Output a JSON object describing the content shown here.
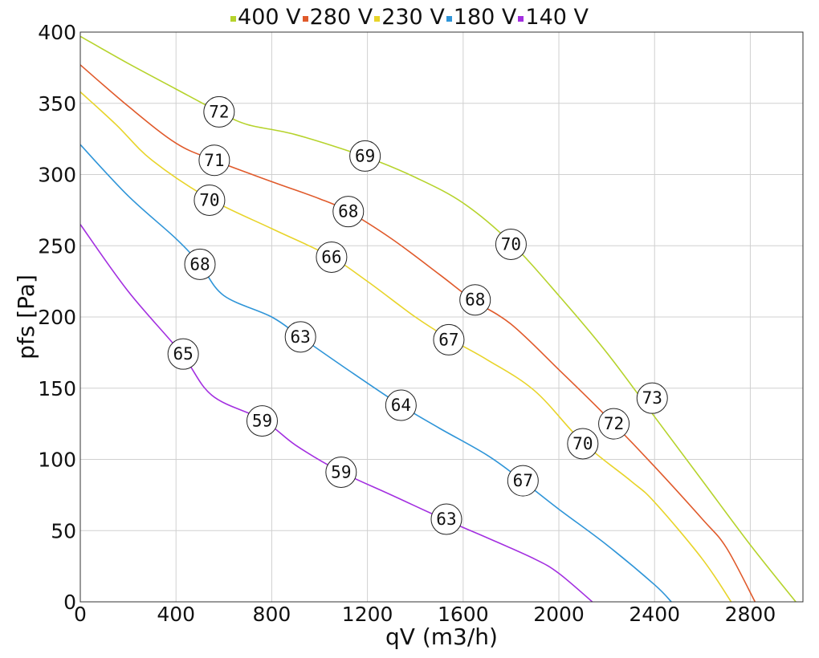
{
  "chart_data": {
    "type": "line",
    "title": "",
    "xlabel": "qV (m3/h)",
    "ylabel": "pfs [Pa]",
    "xlim": [
      0,
      3020
    ],
    "ylim": [
      0,
      400
    ],
    "xticks": [
      0,
      400,
      800,
      1200,
      1600,
      2000,
      2400,
      2800
    ],
    "yticks": [
      0,
      50,
      100,
      150,
      200,
      250,
      300,
      350,
      400
    ],
    "grid": true,
    "legend_position": "top-center",
    "series": [
      {
        "name": "400 V",
        "color": "#b6d32c",
        "points": [
          [
            0,
            397
          ],
          [
            200,
            378
          ],
          [
            400,
            360
          ],
          [
            580,
            344
          ],
          [
            700,
            335
          ],
          [
            900,
            328
          ],
          [
            1200,
            312
          ],
          [
            1400,
            298
          ],
          [
            1600,
            280
          ],
          [
            1800,
            252
          ],
          [
            2000,
            215
          ],
          [
            2200,
            175
          ],
          [
            2400,
            130
          ],
          [
            2600,
            85
          ],
          [
            2800,
            40
          ],
          [
            2990,
            0
          ]
        ],
        "markers": [
          {
            "x": 580,
            "y": 344,
            "label": "72"
          },
          {
            "x": 1190,
            "y": 313,
            "label": "69"
          },
          {
            "x": 1800,
            "y": 251,
            "label": "70"
          },
          {
            "x": 2390,
            "y": 143,
            "label": "73"
          }
        ]
      },
      {
        "name": "280 V",
        "color": "#e05a2b",
        "points": [
          [
            0,
            377
          ],
          [
            200,
            348
          ],
          [
            400,
            322
          ],
          [
            560,
            310
          ],
          [
            800,
            295
          ],
          [
            1000,
            283
          ],
          [
            1120,
            274
          ],
          [
            1300,
            255
          ],
          [
            1500,
            230
          ],
          [
            1640,
            212
          ],
          [
            1800,
            195
          ],
          [
            2000,
            163
          ],
          [
            2200,
            130
          ],
          [
            2400,
            95
          ],
          [
            2600,
            58
          ],
          [
            2700,
            38
          ],
          [
            2820,
            0
          ]
        ],
        "markers": [
          {
            "x": 560,
            "y": 310,
            "label": "71"
          },
          {
            "x": 1120,
            "y": 274,
            "label": "68"
          },
          {
            "x": 1650,
            "y": 212,
            "label": "68"
          },
          {
            "x": 2230,
            "y": 125,
            "label": "72"
          }
        ]
      },
      {
        "name": "230 V",
        "color": "#e8d42a",
        "points": [
          [
            0,
            358
          ],
          [
            150,
            335
          ],
          [
            300,
            310
          ],
          [
            540,
            283
          ],
          [
            800,
            262
          ],
          [
            1040,
            243
          ],
          [
            1200,
            225
          ],
          [
            1400,
            200
          ],
          [
            1540,
            185
          ],
          [
            1700,
            170
          ],
          [
            1900,
            148
          ],
          [
            2100,
            112
          ],
          [
            2300,
            85
          ],
          [
            2400,
            70
          ],
          [
            2600,
            30
          ],
          [
            2720,
            0
          ]
        ],
        "markers": [
          {
            "x": 540,
            "y": 282,
            "label": "70"
          },
          {
            "x": 1050,
            "y": 242,
            "label": "66"
          },
          {
            "x": 1540,
            "y": 184,
            "label": "67"
          },
          {
            "x": 2100,
            "y": 111,
            "label": "70"
          }
        ]
      },
      {
        "name": "180 V",
        "color": "#2f95d8",
        "points": [
          [
            0,
            321
          ],
          [
            200,
            285
          ],
          [
            400,
            255
          ],
          [
            500,
            237
          ],
          [
            600,
            215
          ],
          [
            800,
            200
          ],
          [
            920,
            186
          ],
          [
            1100,
            165
          ],
          [
            1330,
            139
          ],
          [
            1500,
            122
          ],
          [
            1700,
            103
          ],
          [
            1840,
            86
          ],
          [
            2000,
            65
          ],
          [
            2200,
            40
          ],
          [
            2400,
            12
          ],
          [
            2470,
            0
          ]
        ],
        "markers": [
          {
            "x": 500,
            "y": 237,
            "label": "68"
          },
          {
            "x": 920,
            "y": 186,
            "label": "63"
          },
          {
            "x": 1340,
            "y": 138,
            "label": "64"
          },
          {
            "x": 1850,
            "y": 85,
            "label": "67"
          }
        ]
      },
      {
        "name": "140 V",
        "color": "#a32fe0",
        "points": [
          [
            0,
            265
          ],
          [
            200,
            218
          ],
          [
            420,
            175
          ],
          [
            550,
            145
          ],
          [
            760,
            128
          ],
          [
            900,
            110
          ],
          [
            1080,
            92
          ],
          [
            1300,
            75
          ],
          [
            1520,
            58
          ],
          [
            1700,
            45
          ],
          [
            1900,
            30
          ],
          [
            2000,
            20
          ],
          [
            2140,
            0
          ]
        ],
        "markers": [
          {
            "x": 430,
            "y": 174,
            "label": "65"
          },
          {
            "x": 760,
            "y": 127,
            "label": "59"
          },
          {
            "x": 1090,
            "y": 91,
            "label": "59"
          },
          {
            "x": 1530,
            "y": 58,
            "label": "63"
          }
        ]
      }
    ]
  }
}
